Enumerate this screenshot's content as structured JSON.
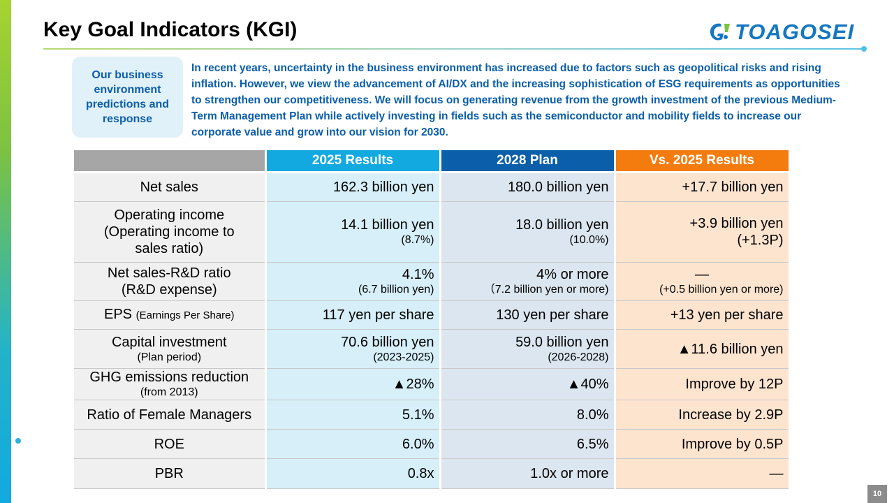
{
  "header": {
    "title": "Key Goal Indicators (KGI)",
    "logo_text": "TOAGOSEI",
    "logo_icon": "toagosei-logo-mark"
  },
  "intro": {
    "label": "Our business environment predictions and response",
    "text": "In recent years, uncertainty in the business environment has increased due to factors such as geopolitical risks and rising inflation. However, we view the advancement of AI/DX and the increasing sophistication of ESG requirements as opportunities to strengthen our competitiveness. We will focus on generating revenue from the growth investment of the previous Medium-Term Management Plan while actively investing in fields such as the semiconductor and mobility fields to increase our corporate value and grow into our vision for 2030."
  },
  "table": {
    "columns": [
      "",
      "2025 Results",
      "2028 Plan",
      "Vs. 2025 Results"
    ],
    "colors": {
      "label": "#a6a6a6",
      "results": "#12a9e0",
      "plan": "#0b5ea9",
      "vs": "#f47c0f"
    },
    "rows": {
      "net_sales": {
        "label": "Net sales",
        "r2025": "162.3 billion yen",
        "p2028": "180.0 billion yen",
        "vs": "+17.7 billion yen"
      },
      "op_income": {
        "label_l1": "Operating income",
        "label_l2": "(Operating income to",
        "label_l3": "sales ratio)",
        "r2025": "14.1 billion yen",
        "r2025_sub": "(8.7%)",
        "p2028": "18.0 billion yen",
        "p2028_sub": "(10.0%)",
        "vs": "+3.9 billion yen",
        "vs_sub": "(+1.3P)"
      },
      "rd": {
        "label_l1": "Net sales-R&D ratio",
        "label_l2": "(R&D expense)",
        "r2025": "4.1%",
        "r2025_sub": "(6.7 billion yen)",
        "p2028": "4% or more",
        "p2028_sub": "（7.2 billion yen or more)",
        "vs": "—",
        "vs_sub": "(+0.5 billion yen or more)"
      },
      "eps": {
        "label": "EPS",
        "label_sub": "(Earnings Per Share)",
        "r2025": "117 yen per share",
        "p2028": "130 yen per share",
        "vs": "+13 yen per share"
      },
      "capex": {
        "label": "Capital investment",
        "label_sub": "(Plan period)",
        "r2025": "70.6 billion yen",
        "r2025_sub": "(2023-2025)",
        "p2028": "59.0 billion yen",
        "p2028_sub": "(2026-2028)",
        "vs": "▲11.6 billion yen"
      },
      "ghg": {
        "label": "GHG emissions reduction",
        "label_sub": "(from 2013)",
        "r2025": "▲28%",
        "p2028": "▲40%",
        "vs": "Improve by 12P"
      },
      "female": {
        "label": "Ratio of Female Managers",
        "r2025": "5.1%",
        "p2028": "8.0%",
        "vs": "Increase by 2.9P"
      },
      "roe": {
        "label": "ROE",
        "r2025": "6.0%",
        "p2028": "6.5%",
        "vs": "Improve by 0.5P"
      },
      "pbr": {
        "label": "PBR",
        "r2025": "0.8x",
        "p2028": "1.0x or more",
        "vs": "—"
      }
    }
  },
  "footer": {
    "page_number": "10"
  }
}
